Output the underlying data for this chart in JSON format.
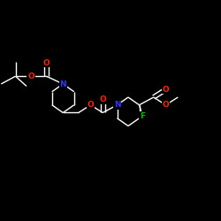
{
  "background_color": "#000000",
  "bond_color": "#ffffff",
  "atom_colors": {
    "O": "#ff2200",
    "N": "#3333ff",
    "F": "#00bb00",
    "C": "#ffffff"
  },
  "figsize": [
    2.5,
    2.5
  ],
  "dpi": 100,
  "xlim": [
    0,
    10
  ],
  "ylim": [
    0,
    10
  ]
}
